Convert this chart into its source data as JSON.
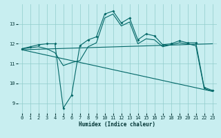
{
  "xlabel": "Humidex (Indice chaleur)",
  "bg_color": "#c8eef0",
  "grid_color": "#90cccc",
  "line_color": "#006666",
  "xlim": [
    -0.5,
    23.5
  ],
  "ylim": [
    8.5,
    14.0
  ],
  "yticks": [
    9,
    10,
    11,
    12,
    13
  ],
  "xticks": [
    0,
    1,
    2,
    3,
    4,
    5,
    6,
    7,
    8,
    9,
    10,
    11,
    12,
    13,
    14,
    15,
    16,
    17,
    18,
    19,
    20,
    21,
    22,
    23
  ],
  "series": [
    {
      "x": [
        0,
        1,
        2,
        3,
        4,
        5,
        6,
        7,
        8,
        9,
        10,
        11,
        12,
        13,
        14,
        15,
        16,
        17,
        18,
        19,
        20,
        21,
        22,
        23
      ],
      "y": [
        11.75,
        11.85,
        11.95,
        12.0,
        12.0,
        8.75,
        9.4,
        11.9,
        12.2,
        12.35,
        13.5,
        13.65,
        13.05,
        13.3,
        12.2,
        12.5,
        12.4,
        11.95,
        12.0,
        12.15,
        12.05,
        12.05,
        9.8,
        9.65
      ],
      "markers": true
    },
    {
      "x": [
        0,
        23
      ],
      "y": [
        11.7,
        12.0
      ],
      "markers": false
    },
    {
      "x": [
        0,
        23
      ],
      "y": [
        11.7,
        9.6
      ],
      "markers": false
    },
    {
      "x": [
        0,
        1,
        2,
        3,
        4,
        5,
        6,
        7,
        8,
        9,
        10,
        11,
        12,
        13,
        14,
        15,
        16,
        17,
        18,
        19,
        20,
        21,
        22,
        23
      ],
      "y": [
        11.75,
        11.8,
        11.85,
        11.75,
        11.55,
        10.9,
        11.05,
        11.15,
        11.85,
        12.05,
        13.3,
        13.5,
        12.9,
        13.1,
        12.0,
        12.25,
        12.2,
        11.85,
        11.95,
        12.05,
        12.0,
        11.9,
        9.75,
        9.6
      ],
      "markers": false
    }
  ]
}
